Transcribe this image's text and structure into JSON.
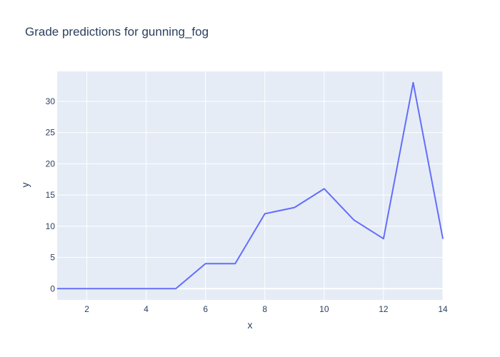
{
  "chart_data": {
    "type": "line",
    "title": "Grade predictions for gunning_fog",
    "xlabel": "x",
    "ylabel": "y",
    "xlim": [
      1,
      14
    ],
    "ylim": [
      -1.8,
      34.8
    ],
    "grid": true,
    "x_ticks": [
      2,
      4,
      6,
      8,
      10,
      12,
      14
    ],
    "y_ticks": [
      0,
      5,
      10,
      15,
      20,
      25,
      30
    ],
    "series": [
      {
        "color": "#636efa",
        "x": [
          1,
          2,
          3,
          4,
          5,
          6,
          7,
          8,
          9,
          10,
          11,
          12,
          13,
          14
        ],
        "y": [
          0,
          0,
          0,
          0,
          0,
          4,
          4,
          12,
          13,
          16,
          11,
          8,
          33,
          8
        ]
      }
    ],
    "colors": {
      "plot_bg": "#e5ecf6",
      "grid": "#ffffff",
      "text": "#2a3f5f"
    }
  }
}
